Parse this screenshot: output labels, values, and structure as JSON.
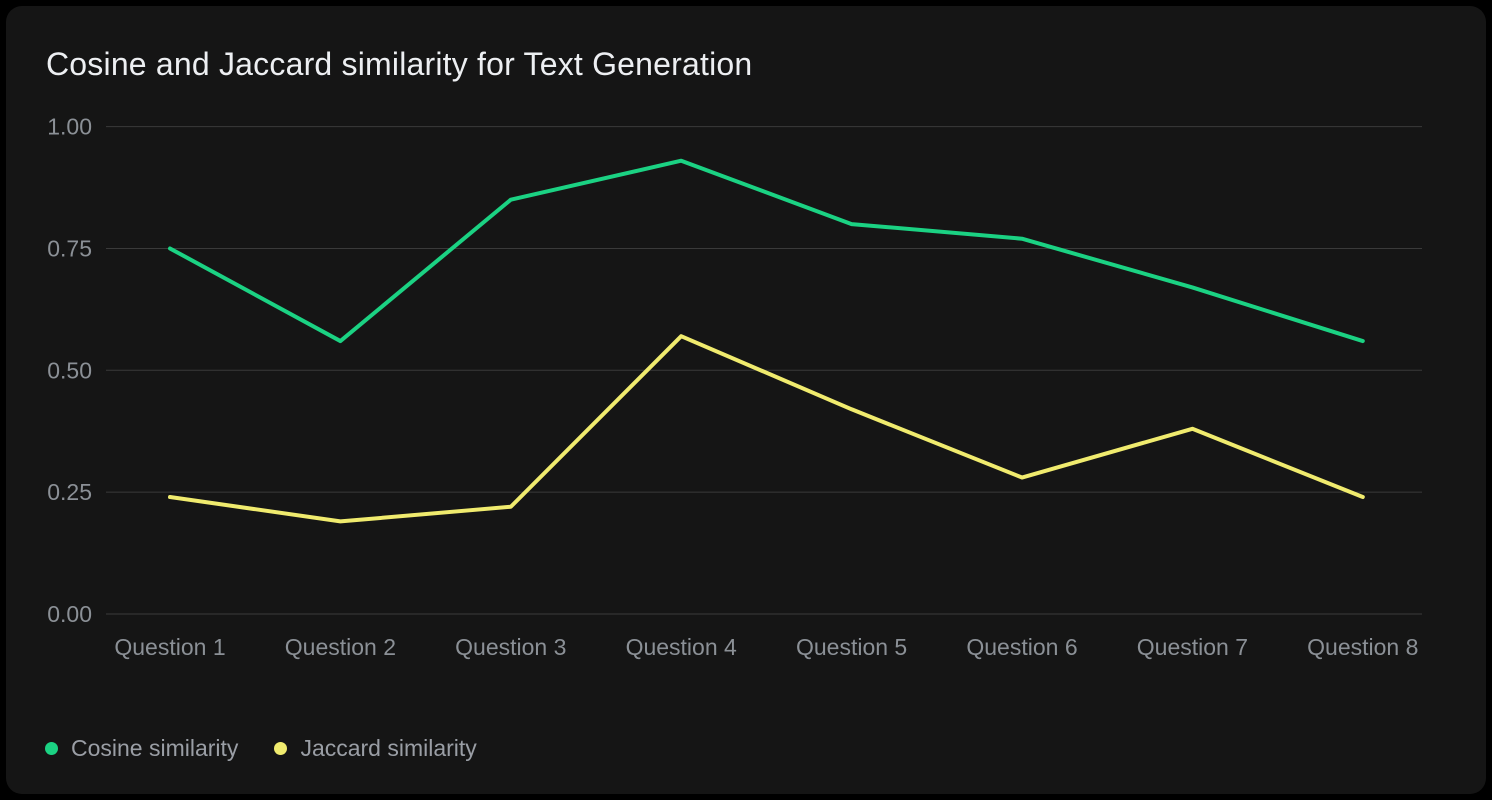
{
  "chart_data": {
    "type": "line",
    "title": "Cosine and Jaccard similarity for Text Generation",
    "categories": [
      "Question 1",
      "Question 2",
      "Question 3",
      "Question 4",
      "Question 5",
      "Question 6",
      "Question 7",
      "Question 8"
    ],
    "series": [
      {
        "name": "Cosine similarity",
        "color": "#1bd283",
        "values": [
          0.75,
          0.56,
          0.85,
          0.93,
          0.8,
          0.77,
          0.67,
          0.56
        ]
      },
      {
        "name": "Jaccard similarity",
        "color": "#f0eb6e",
        "values": [
          0.24,
          0.19,
          0.22,
          0.57,
          0.42,
          0.28,
          0.38,
          0.24
        ]
      }
    ],
    "xlabel": "",
    "ylabel": "",
    "ylim": [
      0,
      1
    ],
    "yticks": [
      0,
      0.25,
      0.5,
      0.75,
      1
    ],
    "ytick_labels": [
      "0.00",
      "0.25",
      "0.50",
      "0.75",
      "1.00"
    ],
    "grid": "horizontal",
    "legend_position": "bottom-left"
  },
  "colors": {
    "background": "#000000",
    "card": "#151515",
    "grid": "#3a3a3a",
    "tick_label": "#8b9096",
    "title": "#edeff2",
    "legend_text": "#9a9ea5"
  }
}
